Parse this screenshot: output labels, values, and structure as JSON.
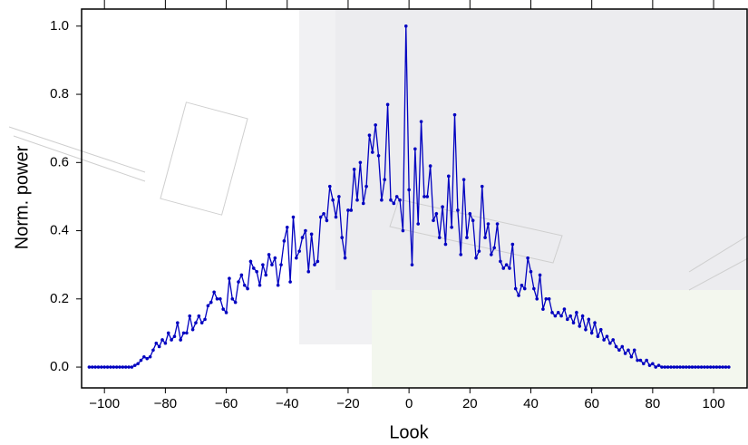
{
  "chart_data": {
    "type": "line",
    "x_label": "Look",
    "y_label": "Norm. power",
    "color": "#0000c0",
    "xlim": [
      -107.5,
      111
    ],
    "ylim": [
      -0.061,
      1.05
    ],
    "xticks": [
      {
        "value": -100,
        "label": "−100"
      },
      {
        "value": -80,
        "label": "−80"
      },
      {
        "value": -60,
        "label": "−60"
      },
      {
        "value": -40,
        "label": "−40"
      },
      {
        "value": -20,
        "label": "−20"
      },
      0,
      20,
      40,
      60,
      80,
      100
    ],
    "yticks": [
      {
        "value": 0,
        "label": "0.0"
      },
      0.2,
      0.4,
      0.6,
      0.8,
      {
        "value": 1,
        "label": "1.0"
      }
    ],
    "x": [
      -105,
      -104,
      -103,
      -102,
      -101,
      -100,
      -99,
      -98,
      -97,
      -96,
      -95,
      -94,
      -93,
      -92,
      -91,
      -90,
      -89,
      -88,
      -87,
      -86,
      -85,
      -84,
      -83,
      -82,
      -81,
      -80,
      -79,
      -78,
      -77,
      -76,
      -75,
      -74,
      -73,
      -72,
      -71,
      -70,
      -69,
      -68,
      -67,
      -66,
      -65,
      -64,
      -63,
      -62,
      -61,
      -60,
      -59,
      -58,
      -57,
      -56,
      -55,
      -54,
      -53,
      -52,
      -51,
      -50,
      -49,
      -48,
      -47,
      -46,
      -45,
      -44,
      -43,
      -42,
      -41,
      -40,
      -39,
      -38,
      -37,
      -36,
      -35,
      -34,
      -33,
      -32,
      -31,
      -30,
      -29,
      -28,
      -27,
      -26,
      -25,
      -24,
      -23,
      -22,
      -21,
      -20,
      -19,
      -18,
      -17,
      -16,
      -15,
      -14,
      -13,
      -12,
      -11,
      -10,
      -9,
      -8,
      -7,
      -6,
      -5,
      -4,
      -3,
      -2,
      -1,
      0,
      1,
      2,
      3,
      4,
      5,
      6,
      7,
      8,
      9,
      10,
      11,
      12,
      13,
      14,
      15,
      16,
      17,
      18,
      19,
      20,
      21,
      22,
      23,
      24,
      25,
      26,
      27,
      28,
      29,
      30,
      31,
      32,
      33,
      34,
      35,
      36,
      37,
      38,
      39,
      40,
      41,
      42,
      43,
      44,
      45,
      46,
      47,
      48,
      49,
      50,
      51,
      52,
      53,
      54,
      55,
      56,
      57,
      58,
      59,
      60,
      61,
      62,
      63,
      64,
      65,
      66,
      67,
      68,
      69,
      70,
      71,
      72,
      73,
      74,
      75,
      76,
      77,
      78,
      79,
      80,
      81,
      82,
      83,
      84,
      85,
      86,
      87,
      88,
      89,
      90,
      91,
      92,
      93,
      94,
      95,
      96,
      97,
      98,
      99,
      100,
      101,
      102,
      103,
      104,
      105
    ],
    "values": [
      0,
      0,
      0,
      0,
      0,
      0,
      0,
      0,
      0,
      0,
      0,
      0,
      0,
      0,
      0,
      0.005,
      0.01,
      0.02,
      0.03,
      0.025,
      0.03,
      0.05,
      0.07,
      0.06,
      0.08,
      0.07,
      0.1,
      0.08,
      0.09,
      0.13,
      0.08,
      0.1,
      0.1,
      0.15,
      0.11,
      0.13,
      0.15,
      0.13,
      0.14,
      0.18,
      0.19,
      0.22,
      0.2,
      0.2,
      0.17,
      0.16,
      0.26,
      0.2,
      0.19,
      0.25,
      0.27,
      0.24,
      0.23,
      0.31,
      0.29,
      0.28,
      0.24,
      0.3,
      0.27,
      0.33,
      0.3,
      0.32,
      0.24,
      0.3,
      0.37,
      0.41,
      0.25,
      0.44,
      0.32,
      0.34,
      0.38,
      0.4,
      0.28,
      0.39,
      0.3,
      0.31,
      0.44,
      0.45,
      0.43,
      0.53,
      0.49,
      0.44,
      0.5,
      0.38,
      0.32,
      0.46,
      0.46,
      0.58,
      0.49,
      0.6,
      0.48,
      0.53,
      0.68,
      0.63,
      0.71,
      0.62,
      0.49,
      0.55,
      0.77,
      0.49,
      0.48,
      0.5,
      0.49,
      0.4,
      1.0,
      0.52,
      0.3,
      0.64,
      0.42,
      0.72,
      0.5,
      0.5,
      0.59,
      0.43,
      0.45,
      0.38,
      0.47,
      0.36,
      0.56,
      0.41,
      0.74,
      0.46,
      0.33,
      0.55,
      0.38,
      0.45,
      0.43,
      0.32,
      0.34,
      0.53,
      0.38,
      0.42,
      0.33,
      0.35,
      0.42,
      0.31,
      0.29,
      0.3,
      0.29,
      0.36,
      0.23,
      0.21,
      0.24,
      0.23,
      0.32,
      0.28,
      0.23,
      0.2,
      0.27,
      0.17,
      0.2,
      0.2,
      0.16,
      0.15,
      0.16,
      0.15,
      0.17,
      0.14,
      0.15,
      0.13,
      0.16,
      0.12,
      0.15,
      0.11,
      0.14,
      0.1,
      0.13,
      0.09,
      0.11,
      0.08,
      0.09,
      0.07,
      0.08,
      0.06,
      0.05,
      0.06,
      0.04,
      0.05,
      0.03,
      0.05,
      0.02,
      0.02,
      0.01,
      0.02,
      0.005,
      0.01,
      0,
      0.005,
      0,
      0,
      0,
      0,
      0,
      0,
      0,
      0,
      0,
      0,
      0,
      0,
      0,
      0,
      0,
      0,
      0,
      0,
      0,
      0,
      0,
      0,
      0
    ]
  }
}
